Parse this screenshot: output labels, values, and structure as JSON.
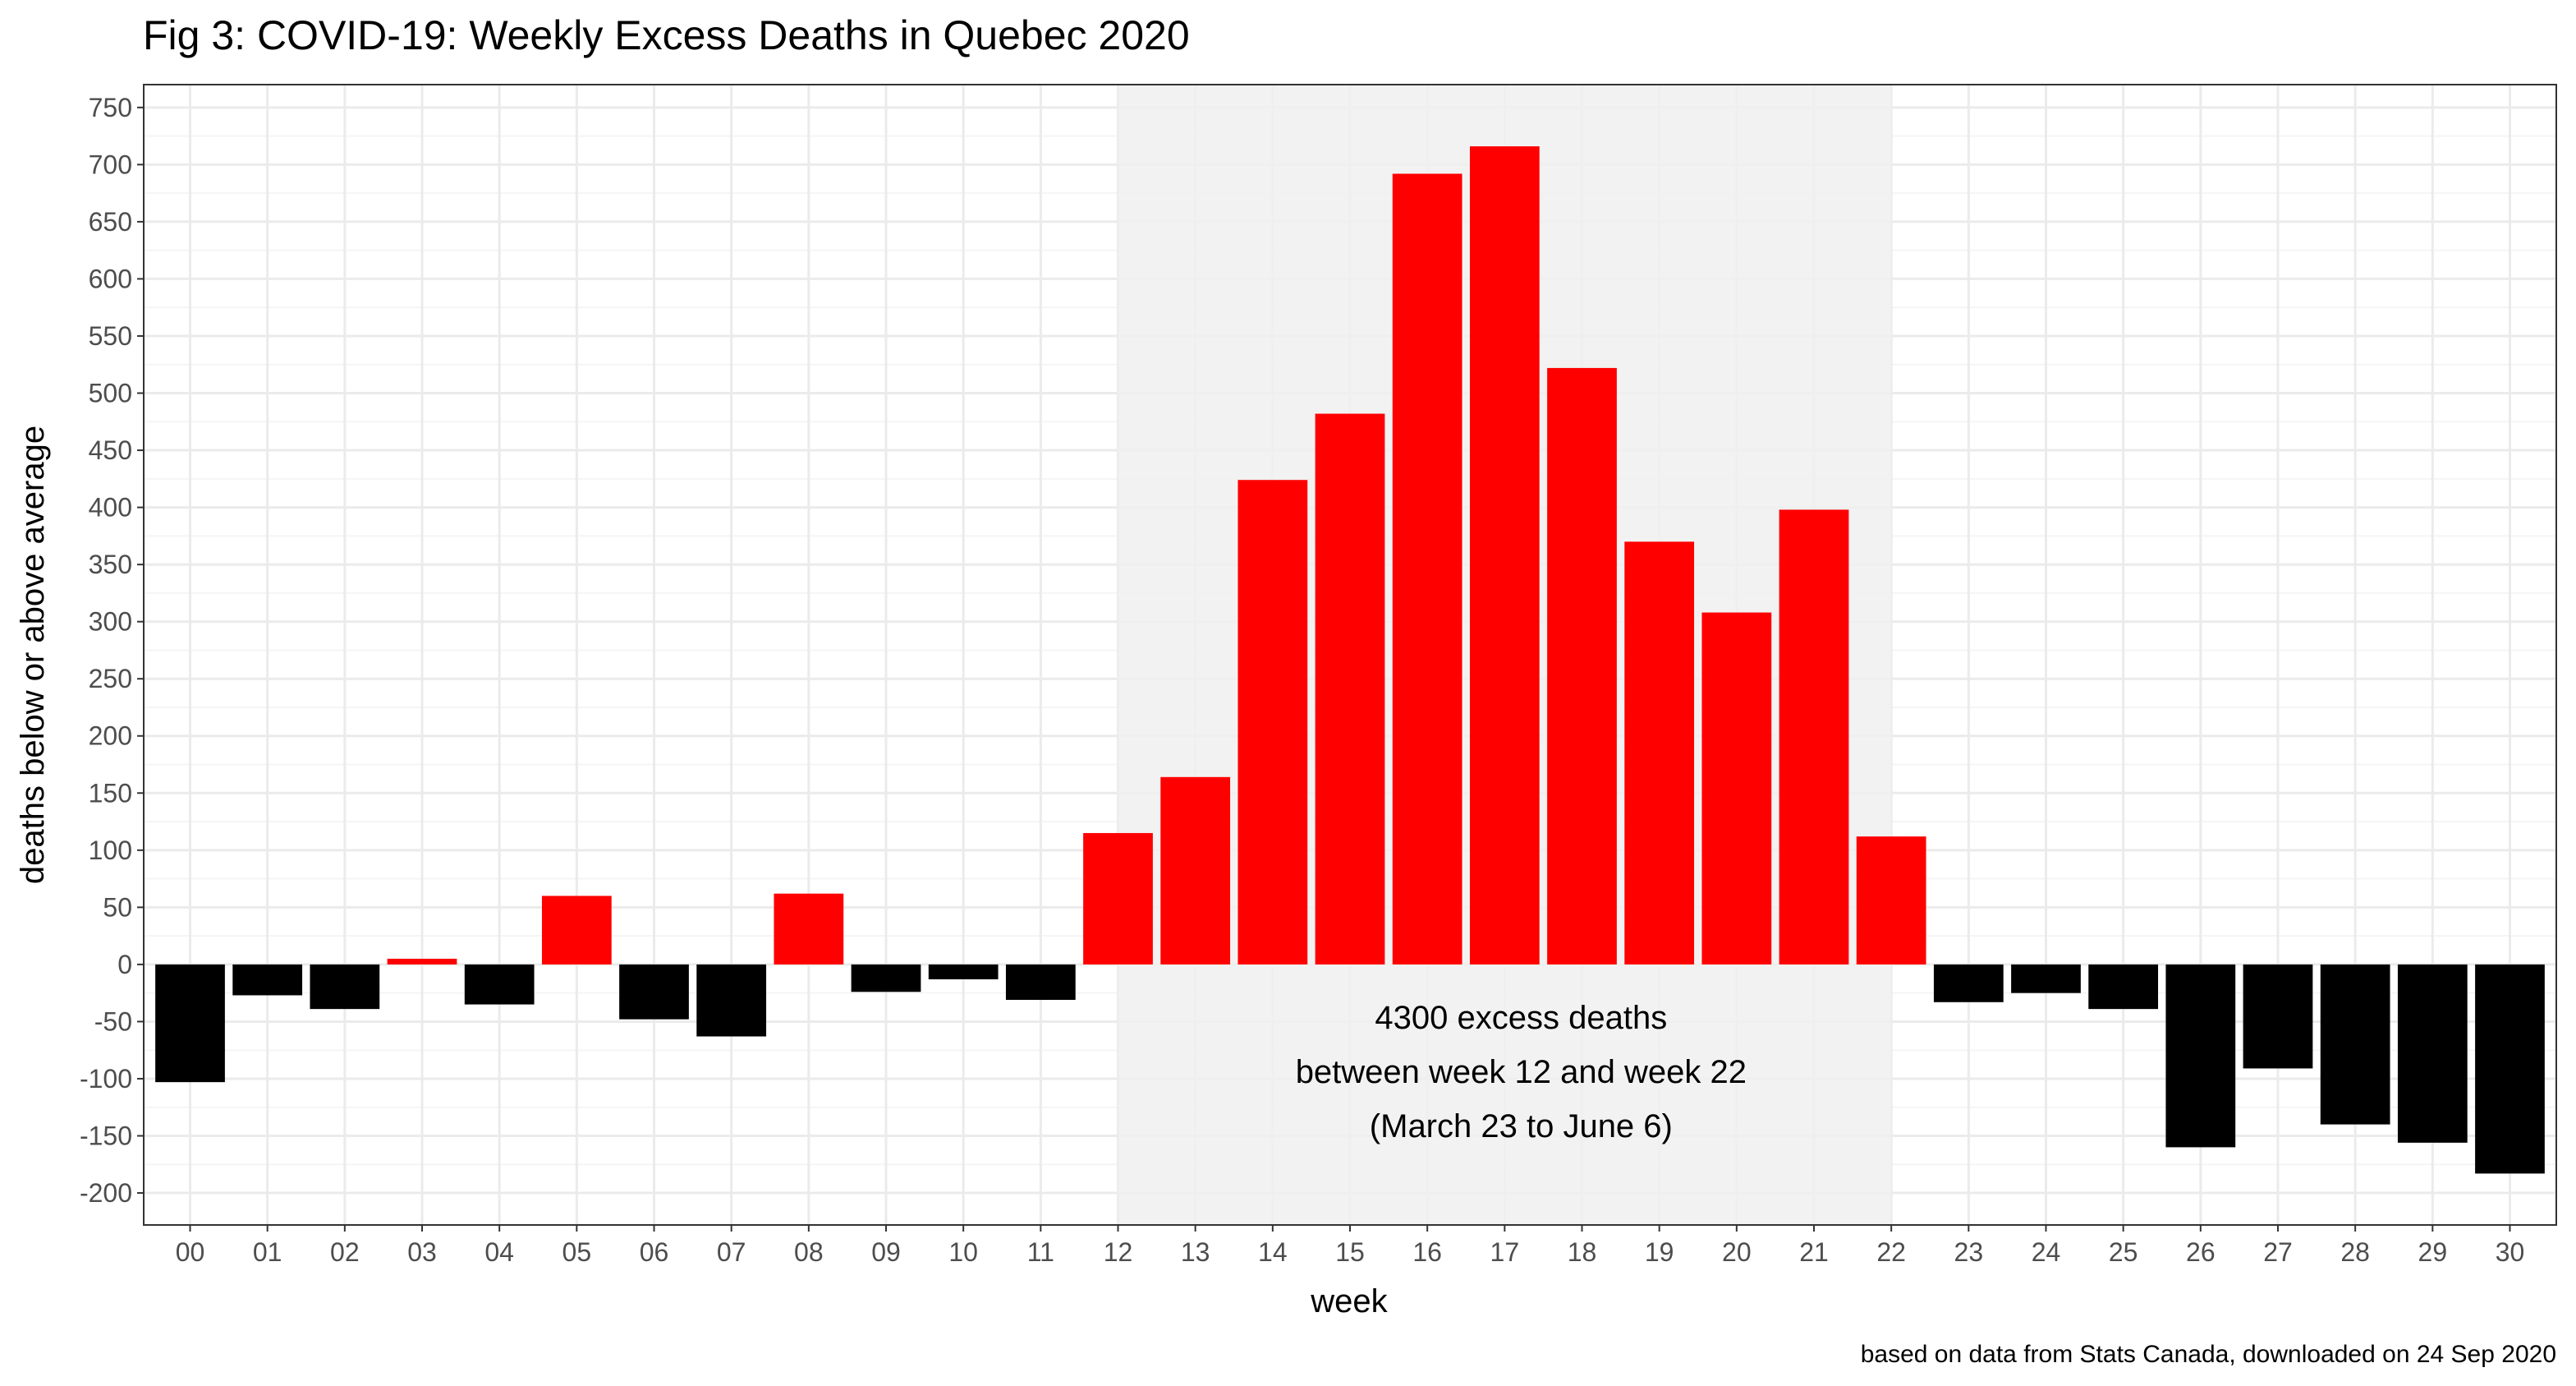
{
  "chart_data": {
    "type": "bar",
    "title": "Fig 3: COVID-19: Weekly Excess Deaths in Quebec 2020",
    "xlabel": "week",
    "ylabel": "deaths below or above average",
    "categories": [
      "00",
      "01",
      "02",
      "03",
      "04",
      "05",
      "06",
      "07",
      "08",
      "09",
      "10",
      "11",
      "12",
      "13",
      "14",
      "15",
      "16",
      "17",
      "18",
      "19",
      "20",
      "21",
      "22",
      "23",
      "24",
      "25",
      "26",
      "27",
      "28",
      "29",
      "30"
    ],
    "values": [
      -103,
      -27,
      -39,
      5,
      -35,
      60,
      -48,
      -63,
      62,
      -24,
      -13,
      -31,
      115,
      164,
      424,
      482,
      692,
      716,
      522,
      370,
      308,
      398,
      112,
      -33,
      -25,
      -39,
      -160,
      -91,
      -140,
      -156,
      -183
    ],
    "ylim": [
      -228,
      770
    ],
    "yticks": [
      -200,
      -150,
      -100,
      -50,
      0,
      50,
      100,
      150,
      200,
      250,
      300,
      350,
      400,
      450,
      500,
      550,
      600,
      650,
      700,
      750
    ],
    "grid": true,
    "legend": "none",
    "highlight_range": [
      "12",
      "22"
    ],
    "annotation": [
      "4300 excess deaths",
      "between week 12 and week 22",
      "(March 23 to June 6)"
    ],
    "caption": "based on data from Stats Canada, downloaded on 24 Sep 2020",
    "colors": {
      "positive": "#ff0000",
      "negative": "#000000",
      "highlight": "#f0f0f0",
      "grid_major": "#ebebeb",
      "grid_minor": "#f5f5f5",
      "border": "#333333"
    }
  }
}
